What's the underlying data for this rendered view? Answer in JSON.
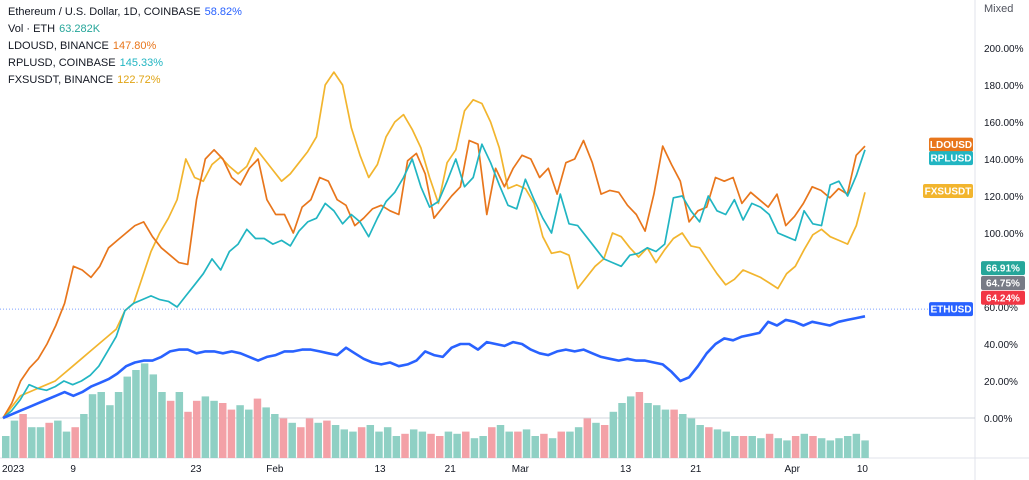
{
  "legend": [
    {
      "label": "Ethereum / U.S. Dollar, 1D, COINBASE",
      "value": "58.82%",
      "color": "#2962ff"
    },
    {
      "label": "Vol · ETH",
      "value": "63.282K",
      "color": "#26a69a"
    },
    {
      "label": "LDOUSD, BINANCE",
      "value": "147.80%",
      "color": "#e8761c"
    },
    {
      "label": "RPLUSD, COINBASE",
      "value": "145.33%",
      "color": "#21b5c2"
    },
    {
      "label": "FXSUSDT, BINANCE",
      "value": "122.72%",
      "color": "#f2b52e"
    }
  ],
  "scale_mode": "Mixed",
  "chart_data": {
    "type": "line",
    "y_unit": "%",
    "ylim": [
      -10,
      220
    ],
    "yticks": [
      "200.00%",
      "180.00%",
      "160.00%",
      "140.00%",
      "120.00%",
      "100.00%",
      "60.00%",
      "40.00%",
      "20.00%",
      "0.00%"
    ],
    "ytick_values": [
      200,
      180,
      160,
      140,
      120,
      100,
      60,
      40,
      20,
      0
    ],
    "x_ticks": [
      "2023",
      "9",
      "23",
      "Feb",
      "13",
      "21",
      "Mar",
      "13",
      "21",
      "Apr",
      "10"
    ],
    "x_tick_days": [
      0,
      8,
      22,
      31,
      43,
      51,
      59,
      71,
      79,
      90,
      98
    ],
    "x_range_days": [
      0,
      104
    ],
    "series": [
      {
        "name": "ETHUSD",
        "color": "#2962ff",
        "last": 58.82,
        "values": [
          0,
          2,
          4,
          6,
          8,
          10,
          12,
          14,
          12,
          14,
          17,
          19,
          21,
          24,
          28,
          30,
          31,
          31,
          33,
          36,
          37,
          37,
          35,
          36,
          36,
          35,
          36,
          35,
          33,
          31,
          33,
          34,
          36,
          36,
          37,
          37,
          36,
          35,
          34,
          38,
          35,
          32,
          30,
          29,
          30,
          28,
          29,
          31,
          36,
          34,
          33,
          38,
          40,
          40,
          37,
          41,
          40,
          39,
          41,
          40,
          37,
          35,
          34,
          36,
          37,
          36,
          37,
          35,
          33,
          32,
          31,
          32,
          31,
          31,
          30,
          29,
          25,
          20,
          22,
          28,
          35,
          40,
          43,
          42,
          44,
          45,
          46,
          52,
          50,
          53,
          52,
          50,
          52,
          51,
          50,
          52,
          53,
          54,
          55
        ]
      },
      {
        "name": "LDOUSD",
        "color": "#e8761c",
        "last": 147.8,
        "values": [
          0,
          8,
          20,
          27,
          32,
          40,
          50,
          62,
          82,
          80,
          76,
          82,
          92,
          96,
          100,
          104,
          106,
          98,
          92,
          88,
          84,
          83,
          118,
          140,
          145,
          140,
          130,
          126,
          135,
          140,
          118,
          110,
          110,
          100,
          114,
          118,
          130,
          128,
          118,
          115,
          104,
          108,
          113,
          115,
          112,
          110,
          139,
          143,
          132,
          108,
          114,
          120,
          125,
          150,
          148,
          110,
          135,
          125,
          135,
          142,
          140,
          130,
          135,
          121,
          138,
          140,
          150,
          138,
          121,
          123,
          122,
          115,
          110,
          101,
          121,
          147,
          137,
          128,
          106,
          112,
          114,
          130,
          128,
          130,
          116,
          122,
          118,
          114,
          121,
          104,
          109,
          116,
          125,
          123,
          119,
          124,
          121,
          142,
          147
        ]
      },
      {
        "name": "RPLUSD",
        "color": "#21b5c2",
        "last": 145.33,
        "values": [
          0,
          4,
          10,
          18,
          16,
          15,
          17,
          20,
          18,
          20,
          23,
          28,
          36,
          44,
          58,
          62,
          64,
          66,
          64,
          63,
          60,
          66,
          72,
          78,
          86,
          80,
          90,
          94,
          102,
          97,
          97,
          94,
          96,
          93,
          101,
          106,
          108,
          116,
          112,
          105,
          110,
          106,
          98,
          108,
          117,
          122,
          130,
          140,
          125,
          114,
          117,
          128,
          140,
          125,
          130,
          148,
          138,
          126,
          115,
          113,
          129,
          118,
          108,
          100,
          121,
          105,
          104,
          98,
          92,
          86,
          84,
          82,
          88,
          89,
          92,
          90,
          94,
          119,
          120,
          112,
          106,
          120,
          112,
          110,
          118,
          107,
          116,
          114,
          110,
          100,
          98,
          96,
          112,
          105,
          104,
          126,
          128,
          120,
          131,
          145
        ]
      },
      {
        "name": "FXSUSDT",
        "color": "#f2b52e",
        "last": 122.72,
        "values": [
          0,
          6,
          12,
          14,
          16,
          18,
          20,
          24,
          28,
          32,
          36,
          40,
          44,
          48,
          58,
          62,
          76,
          90,
          100,
          108,
          118,
          140,
          130,
          128,
          137,
          141,
          136,
          132,
          136,
          146,
          140,
          134,
          128,
          132,
          138,
          144,
          152,
          180,
          187,
          180,
          157,
          142,
          130,
          137,
          152,
          160,
          164,
          156,
          146,
          130,
          116,
          138,
          145,
          166,
          172,
          170,
          160,
          146,
          124,
          126,
          124,
          116,
          98,
          89,
          90,
          88,
          70,
          76,
          82,
          86,
          100,
          98,
          92,
          87,
          92,
          84,
          91,
          97,
          100,
          93,
          92,
          85,
          78,
          72,
          75,
          80,
          78,
          76,
          73,
          70,
          78,
          82,
          91,
          99,
          102,
          98,
          96,
          94,
          104,
          122
        ]
      }
    ],
    "volume": {
      "color_up": "#8fd0c4",
      "color_down": "#f3a1a7",
      "values": [
        10,
        17,
        20,
        14,
        14,
        16,
        17,
        12,
        14,
        20,
        29,
        30,
        24,
        30,
        37,
        40,
        43,
        38,
        30,
        26,
        30,
        21,
        26,
        28,
        26,
        25,
        22,
        24,
        22,
        27,
        23,
        20,
        18,
        16,
        14,
        18,
        16,
        17,
        15,
        13,
        12,
        14,
        15,
        12,
        14,
        10,
        11,
        13,
        12,
        11,
        10,
        12,
        11,
        12,
        9,
        10,
        14,
        15,
        12,
        12,
        13,
        10,
        11,
        9,
        12,
        12,
        14,
        18,
        16,
        15,
        21,
        25,
        28,
        30,
        25,
        24,
        22,
        22,
        20,
        18,
        15,
        14,
        13,
        12,
        10,
        10,
        10,
        9,
        11,
        9,
        8,
        10,
        11,
        10,
        9,
        8,
        9,
        10,
        11,
        8
      ],
      "up": [
        1,
        1,
        0,
        1,
        1,
        0,
        1,
        1,
        0,
        1,
        1,
        1,
        1,
        1,
        1,
        1,
        1,
        1,
        1,
        0,
        1,
        0,
        0,
        1,
        1,
        0,
        0,
        1,
        1,
        0,
        1,
        1,
        0,
        1,
        0,
        0,
        1,
        0,
        1,
        1,
        1,
        0,
        1,
        1,
        1,
        1,
        0,
        1,
        1,
        0,
        0,
        1,
        1,
        0,
        1,
        1,
        0,
        1,
        1,
        0,
        1,
        1,
        0,
        1,
        0,
        1,
        1,
        0,
        1,
        0,
        1,
        1,
        1,
        0,
        1,
        1,
        1,
        0,
        1,
        1,
        1,
        0,
        1,
        1,
        1,
        0,
        1,
        1,
        0,
        1,
        1,
        0,
        1,
        0,
        1,
        1,
        1,
        1,
        1,
        1
      ]
    },
    "badges": [
      {
        "label": "LDOUSD",
        "value": 147.8,
        "color": "#e8761c"
      },
      {
        "label": "RPLUSD",
        "value": 140.5,
        "color": "#21b5c2"
      },
      {
        "label": "FXSUSDT",
        "value": 122.72,
        "color": "#f2b52e"
      },
      {
        "label": "66.91%",
        "value": 81,
        "color": "#26a69a"
      },
      {
        "label": "64.75%",
        "value": 73,
        "color": "#787b86"
      },
      {
        "label": "64.24%",
        "value": 65,
        "color": "#f23645"
      },
      {
        "label": "ETHUSD",
        "value": 58.82,
        "color": "#2962ff"
      }
    ]
  }
}
